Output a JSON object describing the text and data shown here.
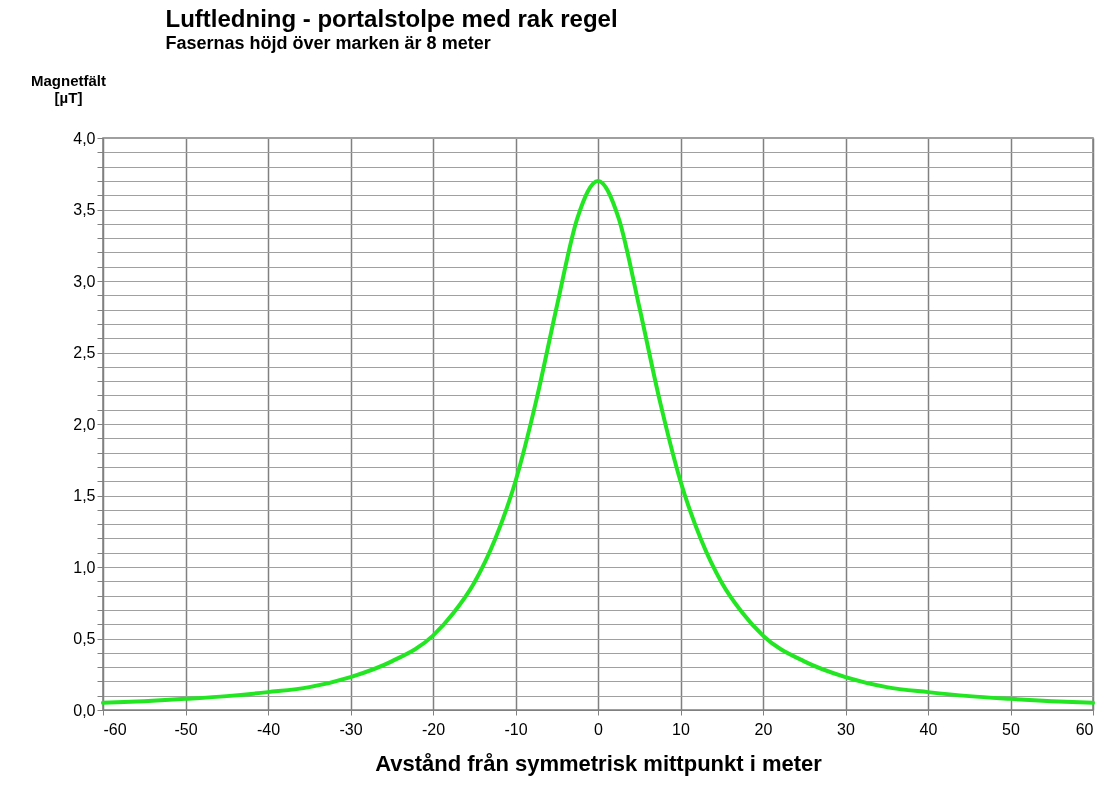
{
  "chart_data": {
    "type": "line",
    "title": "Luftledning - portalstolpe med rak regel",
    "subtitle": "Fasernas höjd över marken är 8 meter",
    "xlabel": "Avstånd från symmetrisk mittpunkt i meter",
    "ylabel": "Magnetfält [µT]",
    "x": [
      -60,
      -55,
      -50,
      -45,
      -40,
      -35,
      -30,
      -25,
      -20,
      -17.5,
      -15,
      -12.5,
      -10,
      -7.5,
      -5,
      -2.5,
      0,
      2.5,
      5,
      7.5,
      10,
      12.5,
      15,
      17.5,
      20,
      25,
      30,
      35,
      40,
      45,
      50,
      55,
      60
    ],
    "series": [
      {
        "color": "#22e622",
        "values": [
          0.05,
          0.062,
          0.078,
          0.097,
          0.125,
          0.16,
          0.23,
          0.34,
          0.52,
          0.68,
          0.89,
          1.19,
          1.6,
          2.16,
          2.82,
          3.44,
          3.7,
          3.44,
          2.82,
          2.16,
          1.6,
          1.19,
          0.89,
          0.68,
          0.52,
          0.34,
          0.23,
          0.16,
          0.125,
          0.097,
          0.078,
          0.062,
          0.05
        ]
      }
    ],
    "xlim": [
      -60,
      60
    ],
    "xticks": [
      -60,
      -50,
      -40,
      -30,
      -20,
      -10,
      0,
      10,
      20,
      30,
      40,
      50,
      60
    ],
    "ylim": [
      0,
      4
    ],
    "yticks": [
      {
        "value": 0,
        "label": "0,0"
      },
      {
        "value": 0.1,
        "label": null
      },
      {
        "value": 0.2,
        "label": null
      },
      {
        "value": 0.3,
        "label": null
      },
      {
        "value": 0.4,
        "label": null
      },
      {
        "value": 0.5,
        "label": "0,5"
      },
      {
        "value": 0.6,
        "label": null
      },
      {
        "value": 0.7,
        "label": null
      },
      {
        "value": 0.8,
        "label": null
      },
      {
        "value": 0.9,
        "label": null
      },
      {
        "value": 1,
        "label": "1,0"
      },
      {
        "value": 1.1,
        "label": null
      },
      {
        "value": 1.2,
        "label": null
      },
      {
        "value": 1.3,
        "label": null
      },
      {
        "value": 1.4,
        "label": null
      },
      {
        "value": 1.5,
        "label": "1,5"
      },
      {
        "value": 1.6,
        "label": null
      },
      {
        "value": 1.7,
        "label": null
      },
      {
        "value": 1.8,
        "label": null
      },
      {
        "value": 1.9,
        "label": null
      },
      {
        "value": 2,
        "label": "2,0"
      },
      {
        "value": 2.1,
        "label": null
      },
      {
        "value": 2.2,
        "label": null
      },
      {
        "value": 2.3,
        "label": null
      },
      {
        "value": 2.4,
        "label": null
      },
      {
        "value": 2.5,
        "label": "2,5"
      },
      {
        "value": 2.6,
        "label": null
      },
      {
        "value": 2.7,
        "label": null
      },
      {
        "value": 2.8,
        "label": null
      },
      {
        "value": 2.9,
        "label": null
      },
      {
        "value": 3,
        "label": "3,0"
      },
      {
        "value": 3.1,
        "label": null
      },
      {
        "value": 3.2,
        "label": null
      },
      {
        "value": 3.3,
        "label": null
      },
      {
        "value": 3.4,
        "label": null
      },
      {
        "value": 3.5,
        "label": "3,5"
      },
      {
        "value": 3.6,
        "label": null
      },
      {
        "value": 3.7,
        "label": null
      },
      {
        "value": 3.8,
        "label": null
      },
      {
        "value": 3.9,
        "label": null
      },
      {
        "value": 4,
        "label": "4,0"
      }
    ],
    "grid": true,
    "marker": "none",
    "line_style": "solid"
  }
}
